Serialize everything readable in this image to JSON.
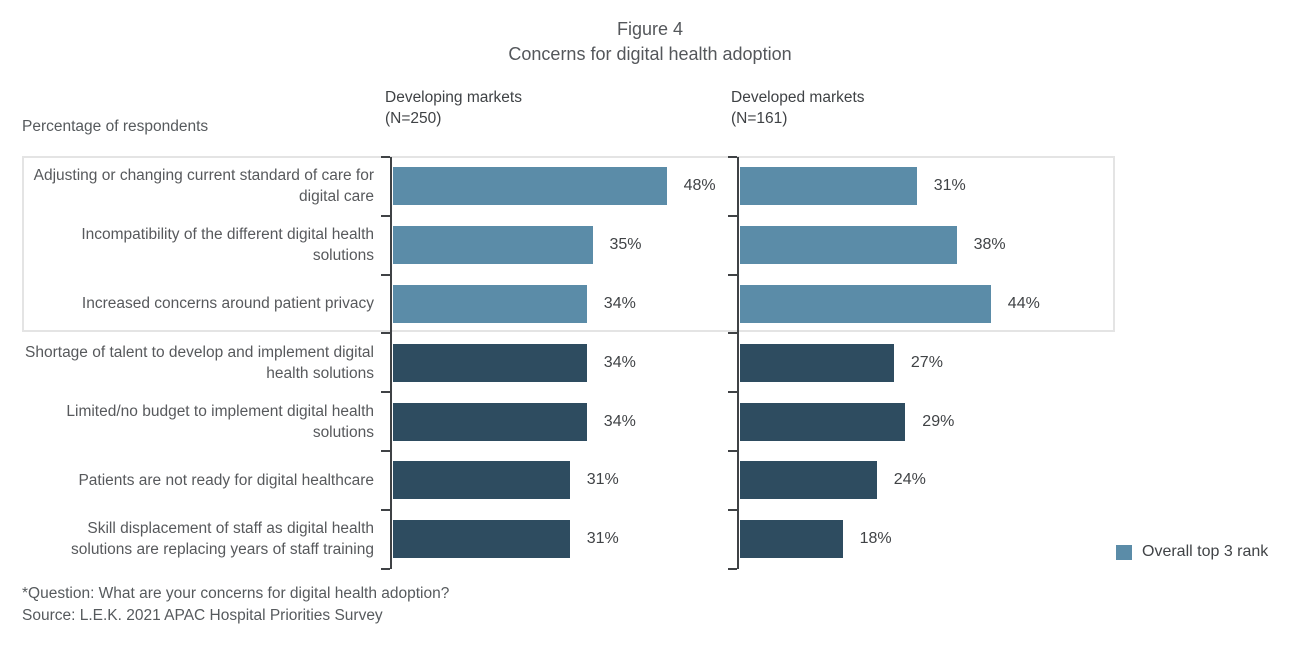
{
  "chart_data": {
    "type": "bar",
    "orientation": "horizontal",
    "title": "Figure 4",
    "subtitle": "Concerns for digital health adoption",
    "axis_note": "Percentage of respondents",
    "categories": [
      "Adjusting or changing current standard of care for digital care",
      "Incompatibility of the different digital health solutions",
      "Increased concerns around patient privacy",
      "Shortage of talent to develop and implement digital health solutions",
      "Limited/no budget to implement digital health solutions",
      "Patients are not ready for digital healthcare",
      "Skill displacement of staff as digital health solutions are replacing years of staff training"
    ],
    "series": [
      {
        "name": "Developing markets",
        "n_label": "(N=250)",
        "values": [
          48,
          35,
          34,
          34,
          34,
          31,
          31
        ]
      },
      {
        "name": "Developed markets",
        "n_label": "(N=161)",
        "values": [
          31,
          38,
          44,
          27,
          29,
          24,
          18
        ]
      }
    ],
    "value_suffix": "%",
    "top3_count": 3,
    "colors": {
      "top3": "#5b8ca8",
      "other": "#2e4c60"
    },
    "legend": {
      "label": "Overall top 3 rank",
      "color": "#5b8ca8"
    },
    "layout_hints": {
      "grid": false,
      "legend_position": "bottom-right",
      "top3_rows_boxed": true
    },
    "footnotes": [
      "*Question: What are your concerns for digital health adoption?",
      "Source: L.E.K. 2021 APAC Hospital Priorities Survey"
    ]
  }
}
